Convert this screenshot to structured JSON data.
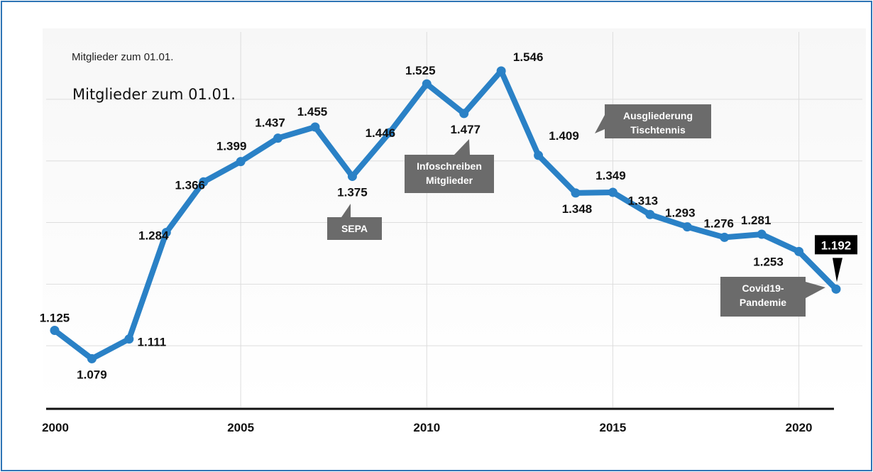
{
  "chart_data": {
    "type": "line",
    "title": "Mitglieder zum 01.01.",
    "subtitle": "Mitglieder zum 01.01.",
    "xlabel": "",
    "ylabel": "",
    "x": [
      2000,
      2001,
      2002,
      2003,
      2004,
      2005,
      2006,
      2007,
      2008,
      2009,
      2010,
      2011,
      2012,
      2013,
      2014,
      2015,
      2016,
      2017,
      2018,
      2019,
      2020,
      2021
    ],
    "series": [
      {
        "values": [
          1125,
          1079,
          1111,
          1284,
          1366,
          1399,
          1437,
          1455,
          1375,
          1446,
          1525,
          1477,
          1546,
          1409,
          1348,
          1349,
          1313,
          1293,
          1276,
          1281,
          1253,
          1192
        ],
        "labels": [
          "1.125",
          "1.079",
          "1.111",
          "1.284",
          "1.366",
          "1.399",
          "1.437",
          "1.455",
          "1.375",
          "1.446",
          "1.525",
          "1.477",
          "1.546",
          "1.409",
          "1.348",
          "1.349",
          "1.313",
          "1.293",
          "1.276",
          "1.281",
          "1.253",
          "1.192"
        ],
        "color": "#2a81c6"
      }
    ],
    "xticks": [
      "2000",
      "2005",
      "2010",
      "2015",
      "2020"
    ],
    "xlim": [
      2000,
      2021
    ],
    "ylim": [
      1000,
      1600
    ],
    "grid": "horizontal",
    "highlight_color": "#000000",
    "annotations": [
      {
        "text": "SEPA",
        "year": 2008
      },
      {
        "text": "Infoschreiben Mitglieder",
        "year": 2011
      },
      {
        "text": "Ausgliederung Tischtennis",
        "year": 2013
      },
      {
        "text": "Covid19- Pandemie",
        "year": 2021
      }
    ]
  }
}
